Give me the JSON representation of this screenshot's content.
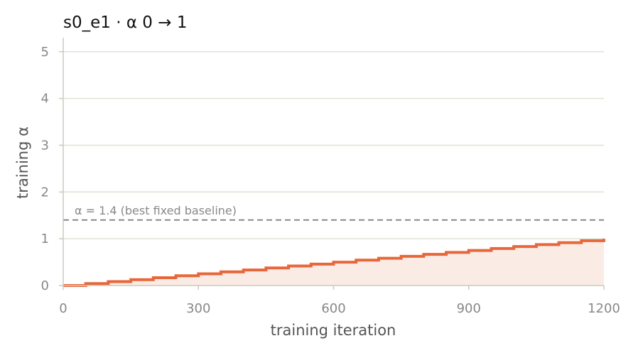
{
  "chart_data": {
    "type": "line",
    "title": "s0_e1   ·   α 0 → 1",
    "xlabel": "training iteration",
    "ylabel": "training α",
    "xlim": [
      0,
      1200
    ],
    "ylim": [
      0,
      5.3
    ],
    "xticks": [
      0,
      300,
      600,
      900,
      1200
    ],
    "yticks": [
      0,
      1,
      2,
      3,
      4,
      5
    ],
    "grid": "horizontal",
    "step": 50,
    "series": [
      {
        "x": [
          0,
          50,
          100,
          150,
          200,
          250,
          300,
          350,
          400,
          450,
          500,
          550,
          600,
          650,
          700,
          750,
          800,
          850,
          900,
          950,
          1000,
          1050,
          1100,
          1150,
          1200
        ],
        "values": [
          0.0,
          0.042,
          0.083,
          0.125,
          0.167,
          0.208,
          0.25,
          0.292,
          0.333,
          0.375,
          0.417,
          0.458,
          0.5,
          0.542,
          0.583,
          0.625,
          0.667,
          0.708,
          0.75,
          0.792,
          0.833,
          0.875,
          0.917,
          0.958,
          1.0
        ],
        "color": "#e8673a",
        "fill": "#fbebe5"
      }
    ],
    "reference_line": {
      "y": 1.4,
      "label": "α = 1.4 (best fixed baseline)",
      "color": "#888888",
      "style": "dashed"
    }
  }
}
